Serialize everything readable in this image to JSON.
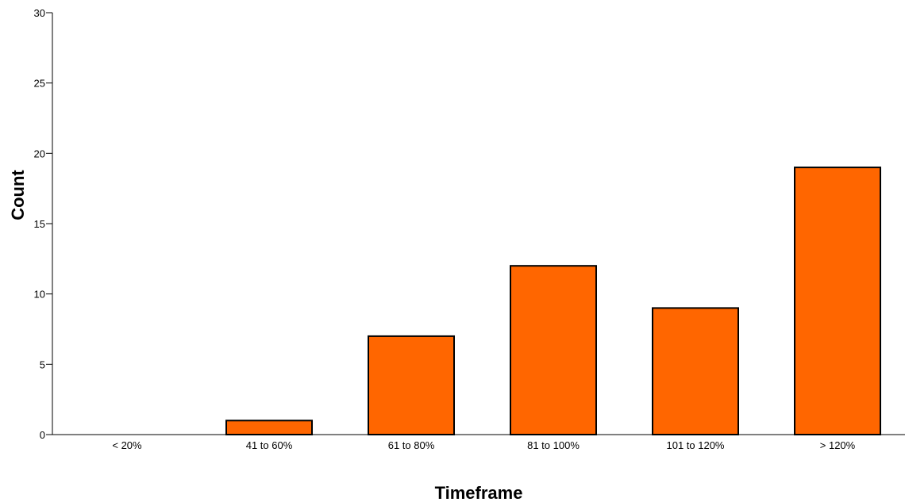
{
  "chart_data": {
    "type": "bar",
    "title": "",
    "xlabel": "Timeframe",
    "ylabel": "Count",
    "categories": [
      "< 20%",
      "41 to 60%",
      "61 to 80%",
      "81 to 100%",
      "101 to 120%",
      "> 120%"
    ],
    "values": [
      0,
      1,
      7,
      12,
      9,
      19
    ],
    "ylim": [
      0,
      30
    ],
    "yticks": [
      "0",
      "5",
      "10",
      "15",
      "20",
      "25",
      "30"
    ],
    "grid": false,
    "legend": "none",
    "bar_color": "#ff6600",
    "bar_edge_color": "#000000"
  }
}
